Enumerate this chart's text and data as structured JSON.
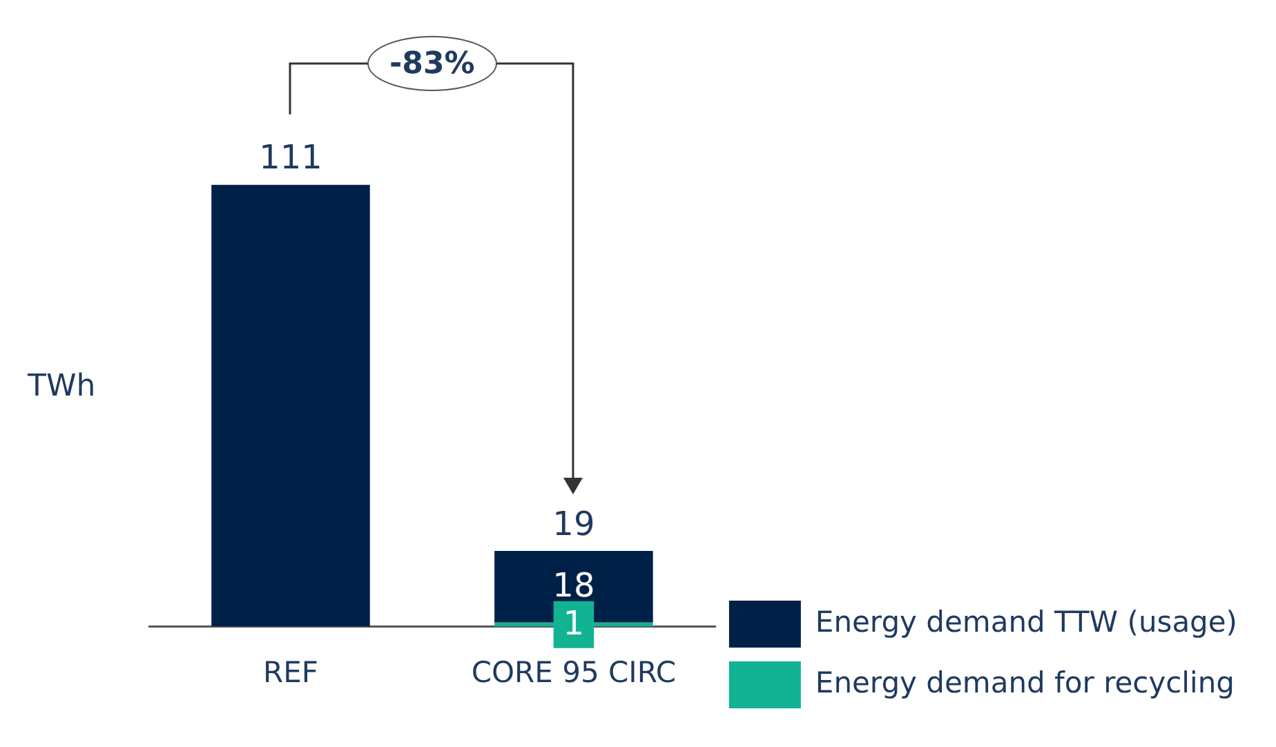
{
  "chart_data": {
    "type": "bar",
    "stacked": true,
    "ylabel": "TWh",
    "categories": [
      "REF",
      "CORE 95 CIRC"
    ],
    "series": [
      {
        "name": "Energy demand for recycling",
        "color": "#12b393",
        "values": [
          null,
          1
        ],
        "value_labels": [
          null,
          "1"
        ]
      },
      {
        "name": "Energy demand TTW (usage)",
        "color": "#002147",
        "values": [
          111,
          18
        ],
        "value_labels": [
          null,
          "18"
        ]
      }
    ],
    "totals": [
      "111",
      "19"
    ],
    "annotations": [
      "-83%"
    ],
    "legend": "bottom right",
    "tick_labels": "x",
    "grid": false
  }
}
